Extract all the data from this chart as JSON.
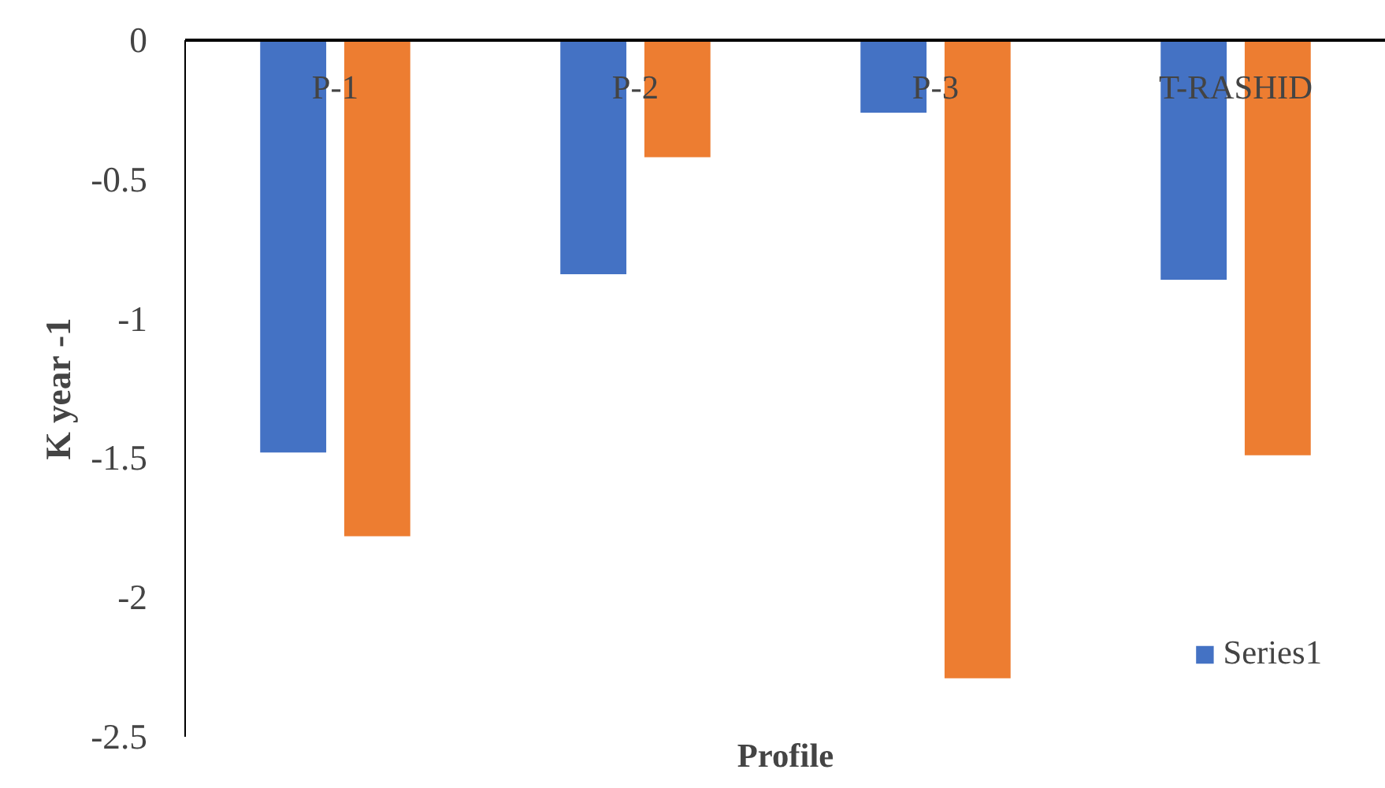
{
  "chart_data": {
    "type": "bar",
    "xlabel": "Profile",
    "ylabel": "K year -1",
    "categories": [
      "P-1",
      "P-2",
      "P-3",
      "T-RASHID"
    ],
    "series": [
      {
        "name": "Series1",
        "color": "#4472c4",
        "values": [
          -1.48,
          -0.84,
          -0.26,
          -0.86
        ]
      },
      {
        "color": "#ed7d31",
        "values": [
          -1.78,
          -0.42,
          -2.29,
          -1.49
        ]
      }
    ],
    "ylim": [
      -2.5,
      0
    ],
    "yticks": [
      0,
      -0.5,
      -1,
      -1.5,
      -2,
      -2.5
    ],
    "grid": false,
    "legend": "bottom right"
  }
}
